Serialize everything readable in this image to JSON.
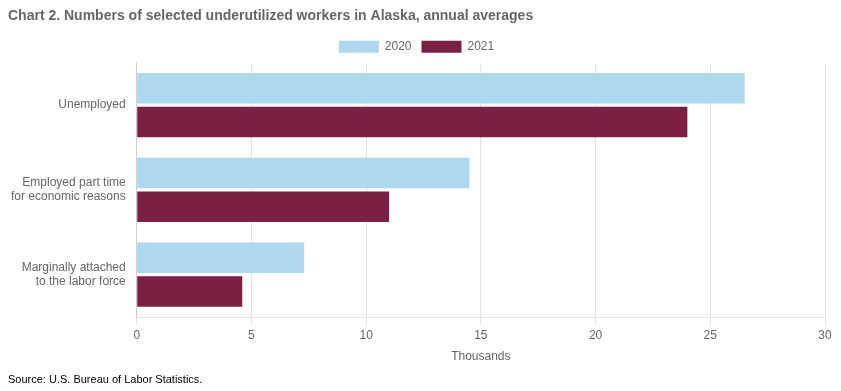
{
  "chart_data": {
    "type": "bar",
    "orientation": "horizontal",
    "title": "Chart 2. Numbers of selected underutilized workers in Alaska, annual averages",
    "categories": [
      "Unemployed",
      "Employed part time\nfor economic reasons",
      "Marginally attached\nto the labor force"
    ],
    "series": [
      {
        "name": "2020",
        "color": "#add8f0",
        "values": [
          26.5,
          14.5,
          7.3
        ]
      },
      {
        "name": "2021",
        "color": "#7b1f45",
        "values": [
          24.0,
          11.0,
          4.6
        ]
      }
    ],
    "xlabel": "Thousands",
    "xlim": [
      0,
      30
    ],
    "xticks": [
      0,
      5,
      10,
      15,
      20,
      25,
      30
    ],
    "grid": true,
    "legend": "top",
    "annotations": [
      "Source: U.S. Bureau of Labor Statistics."
    ]
  }
}
